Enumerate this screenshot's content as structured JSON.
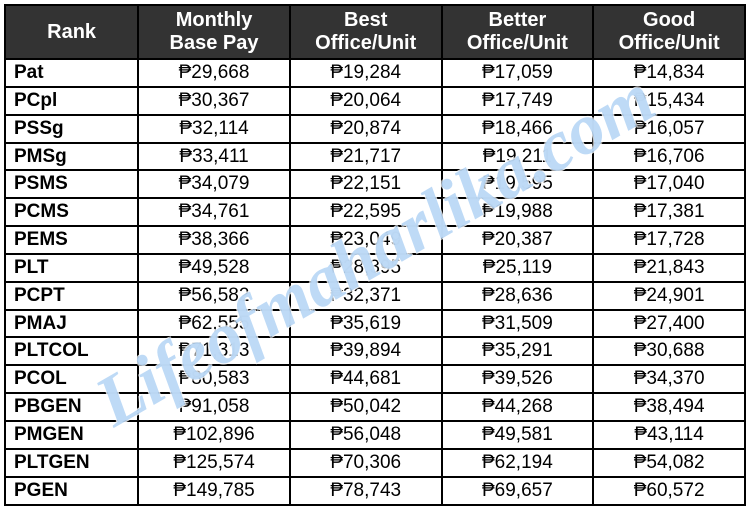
{
  "table": {
    "columns": [
      {
        "label": "Rank"
      },
      {
        "label": "Monthly\nBase Pay"
      },
      {
        "label": "Best\nOffice/Unit"
      },
      {
        "label": "Better\nOffice/Unit"
      },
      {
        "label": "Good\nOffice/Unit"
      }
    ],
    "rows": [
      {
        "rank": "Pat",
        "base": "₱29,668",
        "best": "₱19,284",
        "better": "₱17,059",
        "good": "₱14,834"
      },
      {
        "rank": "PCpl",
        "base": "₱30,367",
        "best": "₱20,064",
        "better": "₱17,749",
        "good": "₱15,434"
      },
      {
        "rank": "PSSg",
        "base": "₱32,114",
        "best": "₱20,874",
        "better": "₱18,466",
        "good": "₱16,057"
      },
      {
        "rank": "PMSg",
        "base": "₱33,411",
        "best": "₱21,717",
        "better": "₱19,211",
        "good": "₱16,706"
      },
      {
        "rank": "PSMS",
        "base": "₱34,079",
        "best": "₱22,151",
        "better": "₱19,595",
        "good": "₱17,040"
      },
      {
        "rank": "PCMS",
        "base": "₱34,761",
        "best": "₱22,595",
        "better": "₱19,988",
        "good": "₱17,381"
      },
      {
        "rank": "PEMS",
        "base": "₱38,366",
        "best": "₱23,049",
        "better": "₱20,387",
        "good": "₱17,728"
      },
      {
        "rank": "PLT",
        "base": "₱49,528",
        "best": "₱28,395",
        "better": "₱25,119",
        "good": "₱21,843"
      },
      {
        "rank": "PCPT",
        "base": "₱56,582",
        "best": "₱32,371",
        "better": "₱28,636",
        "good": "₱24,901"
      },
      {
        "rank": "PMAJ",
        "base": "₱62,555",
        "best": "₱35,619",
        "better": "₱31,509",
        "good": "₱27,400"
      },
      {
        "rank": "PLTCOL",
        "base": "₱71,313",
        "best": "₱39,894",
        "better": "₱35,291",
        "good": "₱30,688"
      },
      {
        "rank": "PCOL",
        "base": "₱80,583",
        "best": "₱44,681",
        "better": "₱39,526",
        "good": "₱34,370"
      },
      {
        "rank": "PBGEN",
        "base": "₱91,058",
        "best": "₱50,042",
        "better": "₱44,268",
        "good": "₱38,494"
      },
      {
        "rank": "PMGEN",
        "base": "₱102,896",
        "best": "₱56,048",
        "better": "₱49,581",
        "good": "₱43,114"
      },
      {
        "rank": "PLTGEN",
        "base": "₱125,574",
        "best": "₱70,306",
        "better": "₱62,194",
        "good": "₱54,082"
      },
      {
        "rank": "PGEN",
        "base": "₱149,785",
        "best": "₱78,743",
        "better": "₱69,657",
        "good": "₱60,572"
      }
    ],
    "styling": {
      "header_bg": "#333333",
      "header_fg": "#ffffff",
      "border_color": "#000000",
      "cell_bg": "#ffffff",
      "font_family": "Arial",
      "header_fontsize_pt": 15,
      "cell_fontsize_pt": 14,
      "rank_bold": true,
      "values_align": "center",
      "rank_align": "left",
      "column_widths_pct": [
        18,
        20.5,
        20.5,
        20.5,
        20.5
      ]
    }
  },
  "watermark": {
    "text": "Lifeofmaharlika.com",
    "color": "rgba(70,150,230,0.35)",
    "rotation_deg": -30,
    "font_style": "italic",
    "font_weight": "bold",
    "font_family": "Georgia"
  }
}
